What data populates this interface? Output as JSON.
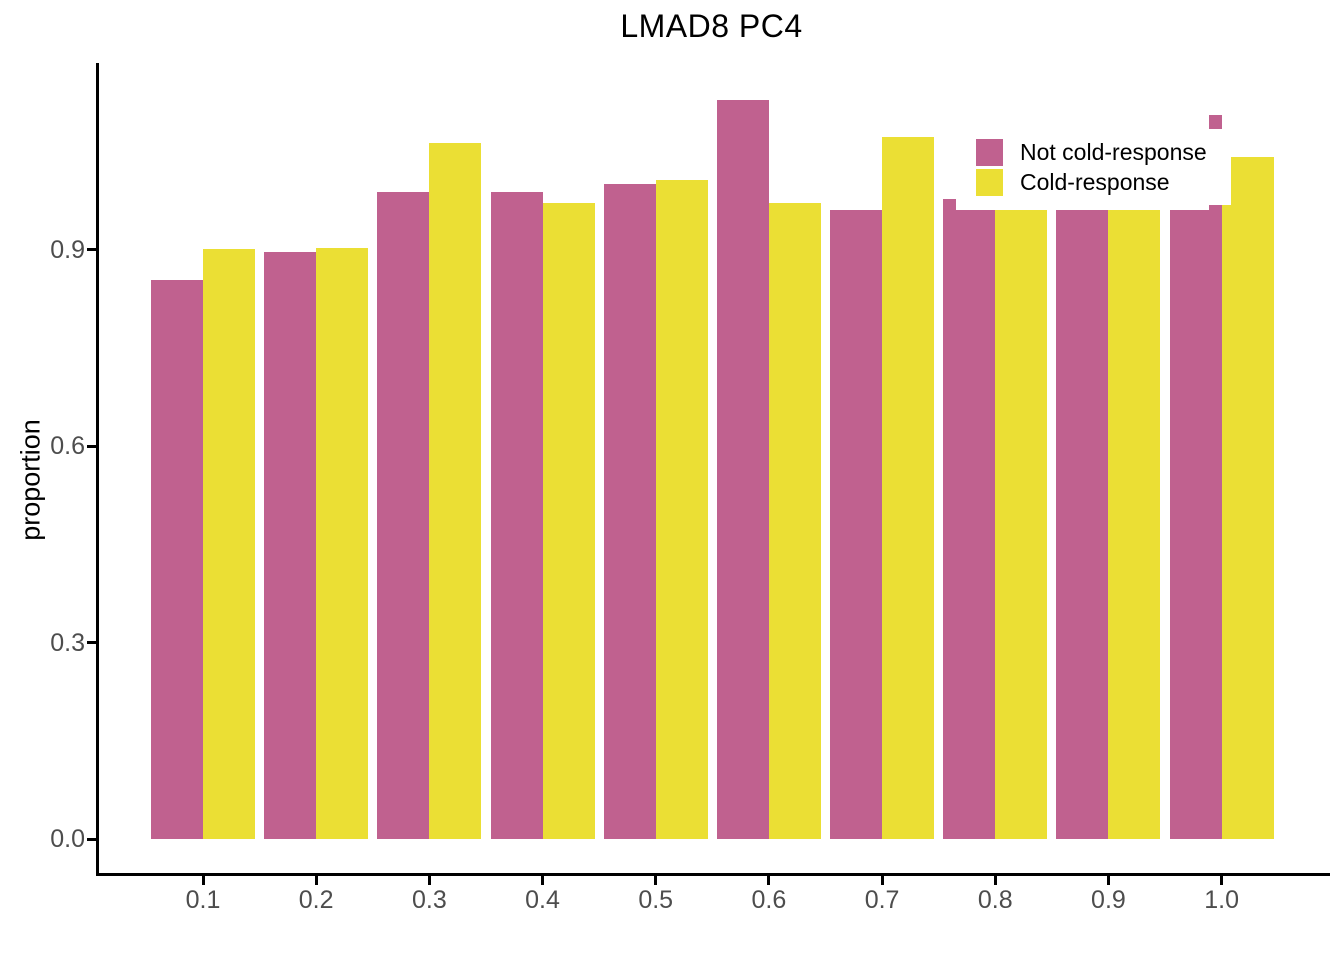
{
  "chart_data": {
    "type": "bar",
    "title": "LMAD8 PC4",
    "xlabel": "",
    "ylabel": "proportion",
    "x": [
      0.1,
      0.2,
      0.3,
      0.4,
      0.5,
      0.6,
      0.7,
      0.8,
      0.9,
      1.0
    ],
    "x_tick_labels": [
      "0.1",
      "0.2",
      "0.3",
      "0.4",
      "0.5",
      "0.6",
      "0.7",
      "0.8",
      "0.9",
      "1.0"
    ],
    "y_ticks": [
      0.0,
      0.3,
      0.6,
      0.9
    ],
    "y_tick_labels": [
      "0.0",
      "0.3",
      "0.6",
      "0.9"
    ],
    "ylim": [
      -0.055,
      1.185
    ],
    "grid": "off",
    "legend_position": "inside-top-right",
    "series": [
      {
        "name": "Not cold-response",
        "color": "#C0618F",
        "values": [
          0.854,
          0.897,
          0.988,
          0.988,
          1.001,
          1.128,
          0.96,
          0.96,
          0.96,
          0.96
        ]
      },
      {
        "name": "Cold-response",
        "color": "#EBDF34",
        "values": [
          0.901,
          0.903,
          1.063,
          0.972,
          1.007,
          0.972,
          1.072,
          0.96,
          0.96,
          1.041
        ]
      }
    ],
    "overlay_spikes": [
      {
        "x": 0.8,
        "series": "Not cold-response",
        "value": 0.977,
        "align": "left"
      },
      {
        "x": 1.0,
        "series": "Not cold-response",
        "value": 1.105,
        "align": "right"
      }
    ],
    "colors": {
      "axis": "#000000",
      "tick_label": "#4D4D4D",
      "title": "#000000",
      "background": "#FFFFFF"
    }
  }
}
